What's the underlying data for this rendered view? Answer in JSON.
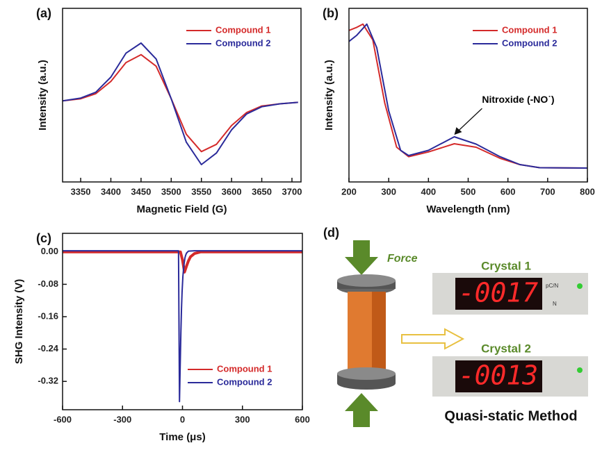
{
  "chart_data": [
    {
      "type": "line",
      "label": "(a)",
      "xlabel": "Magnetic Field (G)",
      "ylabel": "Intensity (a.u.)",
      "xlim": [
        3320,
        3715
      ],
      "xticks": [
        3350,
        3400,
        3450,
        3500,
        3550,
        3600,
        3650,
        3700
      ],
      "ylim": [
        -1.1,
        1.3
      ],
      "legend": "upper right",
      "series": [
        {
          "name": "Compound 1",
          "color": "#d42a2a",
          "x": [
            3320,
            3350,
            3375,
            3400,
            3425,
            3450,
            3475,
            3500,
            3525,
            3550,
            3575,
            3600,
            3625,
            3650,
            3680,
            3710
          ],
          "values": [
            0.02,
            0.05,
            0.12,
            0.29,
            0.55,
            0.66,
            0.5,
            0.05,
            -0.44,
            -0.68,
            -0.58,
            -0.32,
            -0.14,
            -0.05,
            -0.02,
            0
          ]
        },
        {
          "name": "Compound 2",
          "color": "#2a2a9a",
          "x": [
            3320,
            3350,
            3375,
            3400,
            3425,
            3450,
            3475,
            3500,
            3525,
            3550,
            3575,
            3600,
            3625,
            3650,
            3680,
            3710
          ],
          "values": [
            0.02,
            0.06,
            0.14,
            0.35,
            0.68,
            0.82,
            0.6,
            0.05,
            -0.55,
            -0.86,
            -0.7,
            -0.38,
            -0.16,
            -0.06,
            -0.02,
            0
          ]
        }
      ]
    },
    {
      "type": "line",
      "label": "(b)",
      "xlabel": "Wavelength (nm)",
      "ylabel": "Intensity (a.u.)",
      "xlim": [
        200,
        800
      ],
      "xticks": [
        200,
        300,
        400,
        500,
        600,
        700,
        800
      ],
      "ylim": [
        0,
        1.1
      ],
      "legend": "upper right",
      "annotation": {
        "text": "Nitroxide (-NO˙)",
        "x": 465,
        "y": 0.29
      },
      "series": [
        {
          "name": "Compound 1",
          "color": "#d42a2a",
          "x": [
            200,
            220,
            235,
            260,
            290,
            320,
            350,
            400,
            465,
            520,
            580,
            630,
            680,
            800
          ],
          "values": [
            0.96,
            0.98,
            1.0,
            0.9,
            0.5,
            0.22,
            0.16,
            0.19,
            0.242,
            0.22,
            0.15,
            0.11,
            0.09,
            0.088
          ]
        },
        {
          "name": "Compound 2",
          "color": "#2a2a9a",
          "x": [
            200,
            220,
            245,
            270,
            300,
            330,
            350,
            400,
            465,
            520,
            580,
            630,
            680,
            800
          ],
          "values": [
            0.89,
            0.93,
            1.0,
            0.85,
            0.45,
            0.2,
            0.167,
            0.2,
            0.286,
            0.24,
            0.16,
            0.11,
            0.09,
            0.088
          ]
        }
      ]
    },
    {
      "type": "line",
      "label": "(c)",
      "xlabel": "Time (μs)",
      "ylabel": "SHG Intensity (V)",
      "xlim": [
        -600,
        600
      ],
      "xticks": [
        -600,
        -300,
        0,
        300,
        600
      ],
      "ylim": [
        -0.39,
        0.046
      ],
      "yticks": [
        {
          "value": 0,
          "label": "0.00"
        },
        {
          "value": -0.08,
          "label": "-0.08"
        },
        {
          "value": -0.16,
          "label": "-0.16"
        },
        {
          "value": -0.24,
          "label": "-0.24"
        },
        {
          "value": -0.32,
          "label": "-0.32"
        }
      ],
      "legend": "lower right",
      "series": [
        {
          "name": "Compound 1",
          "color": "#d42a2a",
          "width": 4,
          "x": [
            -600,
            -10,
            0,
            10,
            20,
            30,
            40,
            60,
            90,
            600
          ],
          "values": [
            0,
            0,
            -0.02,
            -0.05,
            -0.035,
            -0.022,
            -0.012,
            -0.004,
            0,
            0
          ]
        },
        {
          "name": "Compound 2",
          "color": "#2a2a9a",
          "x": [
            -600,
            -20,
            -15,
            -12,
            -8,
            -5,
            -2,
            0,
            2,
            5,
            8,
            12,
            16,
            20,
            30,
            60,
            600
          ],
          "values": [
            0.003,
            0.003,
            -0.37,
            -0.3,
            -0.2,
            -0.14,
            -0.1,
            -0.08,
            -0.06,
            -0.045,
            -0.03,
            -0.015,
            -0.008,
            -0.003,
            0.002,
            0.003,
            0.003
          ]
        }
      ]
    }
  ],
  "diagram": {
    "label": "(d)",
    "force": "Force",
    "crystal_1": "Crystal 1",
    "display_1": "-0017",
    "crystal_2": "Crystal 2",
    "display_2": "-0013",
    "unit": "pC/N",
    "n": "N",
    "method": "Quasi-static Method"
  }
}
